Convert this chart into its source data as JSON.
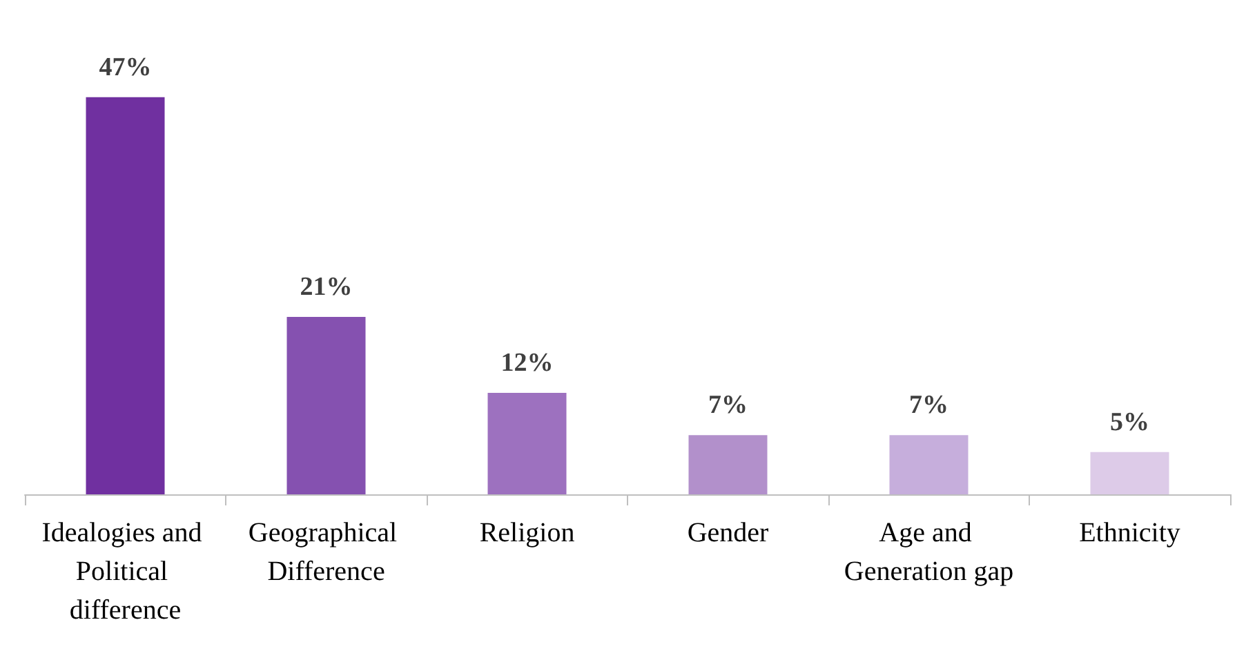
{
  "chart_data": {
    "type": "bar",
    "categories": [
      "Idealogies and Political difference",
      "Geographical Difference",
      "Religion",
      "Gender",
      "Age and Generation gap",
      "Ethnicity"
    ],
    "values": [
      47,
      21,
      12,
      7,
      7,
      5
    ],
    "colors": [
      "#7030a0",
      "#8551b0",
      "#9d71bf",
      "#b290cb",
      "#c6aedc",
      "#ddcbe8"
    ],
    "value_labels": [
      "47%",
      "21%",
      "12%",
      "7%",
      "7%",
      "5%"
    ]
  }
}
